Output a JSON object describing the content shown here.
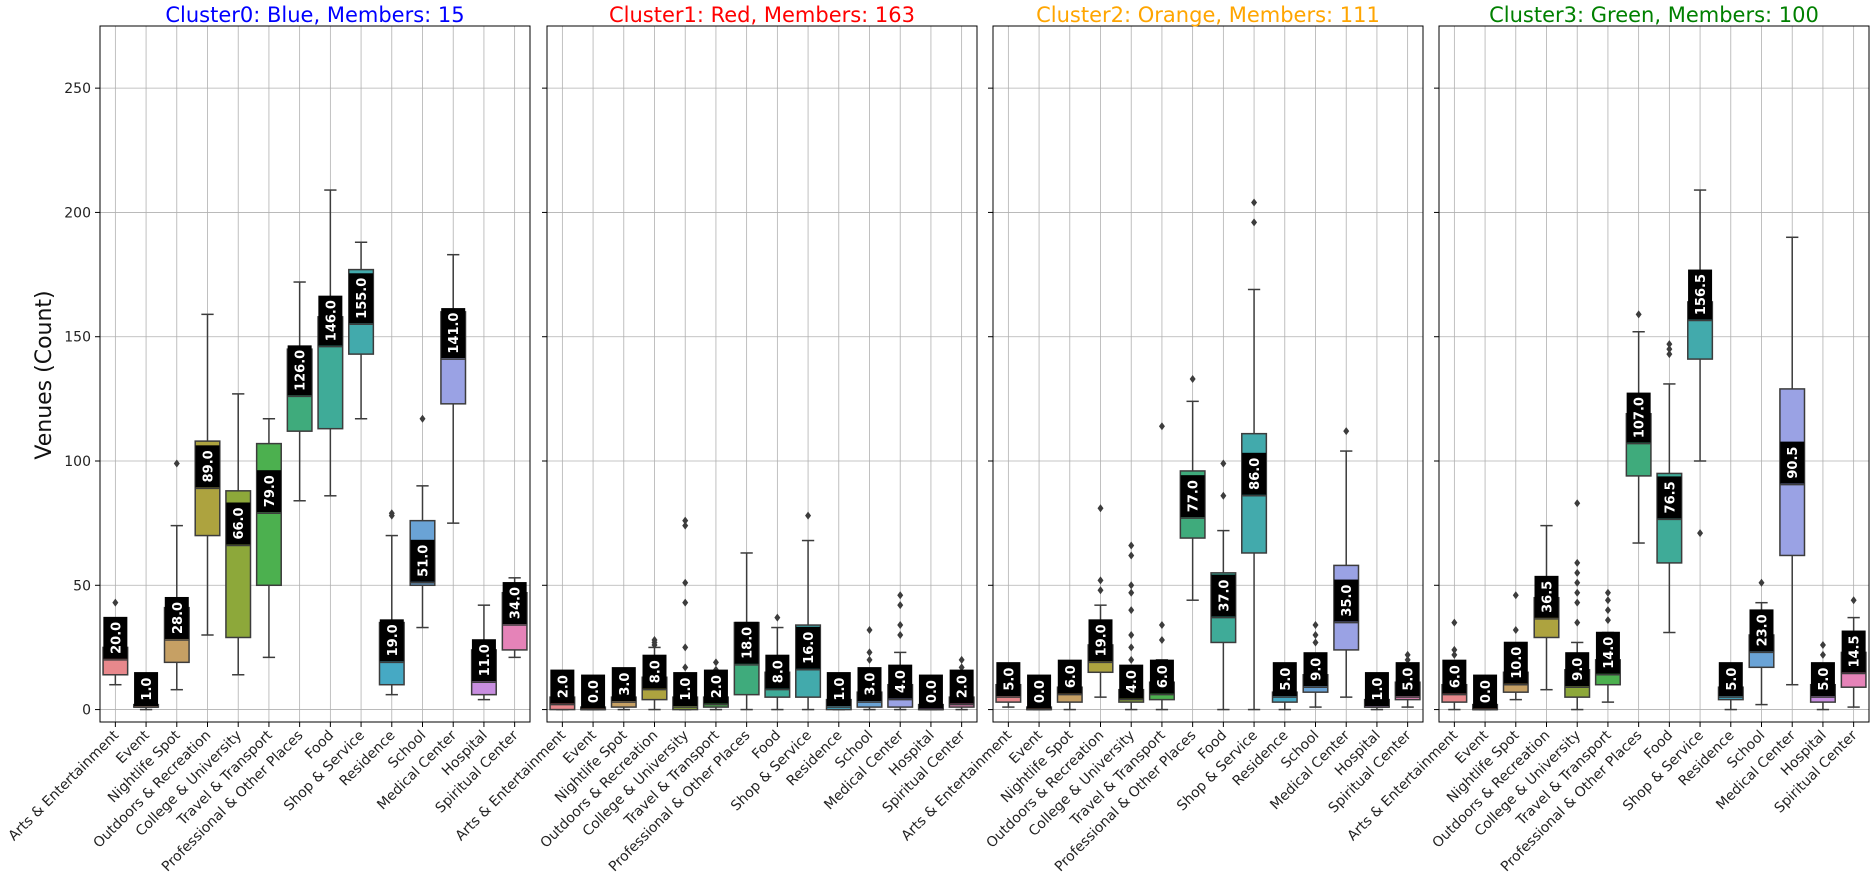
{
  "chart_data": {
    "type": "box",
    "ylabel": "Venues (Count)",
    "ylim": [
      -5,
      275
    ],
    "yticks": [
      0,
      50,
      100,
      150,
      200,
      250
    ],
    "grid": true,
    "categories": [
      "Arts & Entertainment",
      "Event",
      "Nightlife Spot",
      "Outdoors & Recreation",
      "College & University",
      "Travel & Transport",
      "Professional & Other Places",
      "Food",
      "Shop & Service",
      "Residence",
      "School",
      "Medical Center",
      "Hospital",
      "Spiritual Center"
    ],
    "category_colors": [
      "#e8888c",
      "#d89a7c",
      "#c6a064",
      "#ada33f",
      "#8da83a",
      "#4cb04f",
      "#3fab7c",
      "#3fab98",
      "#42aaac",
      "#46a9c4",
      "#6aa3d6",
      "#9aa2e4",
      "#c88ee0",
      "#e583b8"
    ],
    "panels": [
      {
        "title": "Cluster0: Blue, Members: 15",
        "title_color": "#0000ff",
        "boxes": [
          {
            "q1": 14,
            "median": 20,
            "q3": 25,
            "whisker_low": 10,
            "whisker_high": 35,
            "outliers": [
              43
            ]
          },
          {
            "q1": 1,
            "median": 1,
            "q3": 2,
            "whisker_low": 0,
            "whisker_high": 3,
            "outliers": []
          },
          {
            "q1": 19,
            "median": 28,
            "q3": 41,
            "whisker_low": 8,
            "whisker_high": 74,
            "outliers": [
              99
            ]
          },
          {
            "q1": 70,
            "median": 89,
            "q3": 108,
            "whisker_low": 30,
            "whisker_high": 159,
            "outliers": []
          },
          {
            "q1": 29,
            "median": 66,
            "q3": 88,
            "whisker_low": 14,
            "whisker_high": 127,
            "outliers": []
          },
          {
            "q1": 50,
            "median": 79,
            "q3": 107,
            "whisker_low": 21,
            "whisker_high": 117,
            "outliers": []
          },
          {
            "q1": 112,
            "median": 126,
            "q3": 145,
            "whisker_low": 84,
            "whisker_high": 172,
            "outliers": []
          },
          {
            "q1": 113,
            "median": 146,
            "q3": 158,
            "whisker_low": 86,
            "whisker_high": 209,
            "outliers": []
          },
          {
            "q1": 143,
            "median": 155,
            "q3": 177,
            "whisker_low": 117,
            "whisker_high": 188,
            "outliers": []
          },
          {
            "q1": 10,
            "median": 19,
            "q3": 35,
            "whisker_low": 6,
            "whisker_high": 70,
            "outliers": [
              78,
              79
            ]
          },
          {
            "q1": 50,
            "median": 51,
            "q3": 76,
            "whisker_low": 33,
            "whisker_high": 90,
            "outliers": [
              117
            ]
          },
          {
            "q1": 123,
            "median": 141,
            "q3": 160,
            "whisker_low": 75,
            "whisker_high": 183,
            "outliers": []
          },
          {
            "q1": 6,
            "median": 11,
            "q3": 24,
            "whisker_low": 4,
            "whisker_high": 42,
            "outliers": []
          },
          {
            "q1": 24,
            "median": 34,
            "q3": 47,
            "whisker_low": 21,
            "whisker_high": 53,
            "outliers": []
          }
        ],
        "median_labels": [
          "20.0",
          "1.0",
          "28.0",
          "89.0",
          "66.0",
          "79.0",
          "126.0",
          "146.0",
          "155.0",
          "19.0",
          "51.0",
          "141.0",
          "11.0",
          "34.0"
        ]
      },
      {
        "title": "Cluster1: Red, Members: 163",
        "title_color": "#ff0000",
        "boxes": [
          {
            "q1": 0,
            "median": 2,
            "q3": 5,
            "whisker_low": 0,
            "whisker_high": 9,
            "outliers": [
              10,
              12
            ]
          },
          {
            "q1": 0,
            "median": 0,
            "q3": 1,
            "whisker_low": 0,
            "whisker_high": 2,
            "outliers": [
              3
            ]
          },
          {
            "q1": 1,
            "median": 3,
            "q3": 5,
            "whisker_low": 0,
            "whisker_high": 10,
            "outliers": [
              12
            ]
          },
          {
            "q1": 4,
            "median": 8,
            "q3": 13,
            "whisker_low": 0,
            "whisker_high": 25,
            "outliers": [
              26,
              27,
              28
            ]
          },
          {
            "q1": 0,
            "median": 1,
            "q3": 5,
            "whisker_low": 0,
            "whisker_high": 12,
            "outliers": [
              17,
              25,
              43,
              51,
              74,
              76
            ]
          },
          {
            "q1": 1,
            "median": 2,
            "q3": 5,
            "whisker_low": 0,
            "whisker_high": 11,
            "outliers": [
              16,
              19
            ]
          },
          {
            "q1": 6,
            "median": 18,
            "q3": 35,
            "whisker_low": 0,
            "whisker_high": 63,
            "outliers": []
          },
          {
            "q1": 5,
            "median": 8,
            "q3": 15,
            "whisker_low": 0,
            "whisker_high": 33,
            "outliers": [
              37
            ]
          },
          {
            "q1": 5,
            "median": 16,
            "q3": 34,
            "whisker_low": 0,
            "whisker_high": 68,
            "outliers": [
              78
            ]
          },
          {
            "q1": 0,
            "median": 1,
            "q3": 4,
            "whisker_low": 0,
            "whisker_high": 9,
            "outliers": []
          },
          {
            "q1": 1,
            "median": 3,
            "q3": 7,
            "whisker_low": 0,
            "whisker_high": 15,
            "outliers": [
              20,
              23,
              32
            ]
          },
          {
            "q1": 1,
            "median": 4,
            "q3": 10,
            "whisker_low": 0,
            "whisker_high": 23,
            "outliers": [
              30,
              34,
              42,
              46
            ]
          },
          {
            "q1": 0,
            "median": 0,
            "q3": 2,
            "whisker_low": 0,
            "whisker_high": 6,
            "outliers": []
          },
          {
            "q1": 1,
            "median": 2,
            "q3": 5,
            "whisker_low": 0,
            "whisker_high": 13,
            "outliers": [
              17,
              20
            ]
          }
        ],
        "median_labels": [
          "2.0",
          "0.0",
          "3.0",
          "8.0",
          "1.0",
          "2.0",
          "18.0",
          "8.0",
          "16.0",
          "1.0",
          "3.0",
          "4.0",
          "0.0",
          "2.0"
        ]
      },
      {
        "title": "Cluster2: Orange, Members: 111",
        "title_color": "#ffa500",
        "boxes": [
          {
            "q1": 3,
            "median": 5,
            "q3": 10,
            "whisker_low": 1,
            "whisker_high": 14,
            "outliers": []
          },
          {
            "q1": 0,
            "median": 0,
            "q3": 1,
            "whisker_low": 0,
            "whisker_high": 2,
            "outliers": []
          },
          {
            "q1": 3,
            "median": 6,
            "q3": 9,
            "whisker_low": 0,
            "whisker_high": 15,
            "outliers": []
          },
          {
            "q1": 15,
            "median": 19,
            "q3": 26,
            "whisker_low": 5,
            "whisker_high": 42,
            "outliers": [
              48,
              52,
              81
            ]
          },
          {
            "q1": 3,
            "median": 4,
            "q3": 8,
            "whisker_low": 0,
            "whisker_high": 15,
            "outliers": [
              20,
              25,
              30,
              40,
              47,
              50,
              62,
              66
            ]
          },
          {
            "q1": 4,
            "median": 6,
            "q3": 11,
            "whisker_low": 0,
            "whisker_high": 20,
            "outliers": [
              28,
              34,
              114
            ]
          },
          {
            "q1": 69,
            "median": 77,
            "q3": 96,
            "whisker_low": 44,
            "whisker_high": 124,
            "outliers": [
              133
            ]
          },
          {
            "q1": 27,
            "median": 37,
            "q3": 55,
            "whisker_low": 0,
            "whisker_high": 72,
            "outliers": [
              86,
              99
            ]
          },
          {
            "q1": 63,
            "median": 86,
            "q3": 111,
            "whisker_low": 0,
            "whisker_high": 169,
            "outliers": [
              196,
              204
            ]
          },
          {
            "q1": 3,
            "median": 5,
            "q3": 7,
            "whisker_low": 0,
            "whisker_high": 10,
            "outliers": []
          },
          {
            "q1": 7,
            "median": 9,
            "q3": 14,
            "whisker_low": 1,
            "whisker_high": 22,
            "outliers": [
              27,
              30,
              34
            ]
          },
          {
            "q1": 24,
            "median": 35,
            "q3": 58,
            "whisker_low": 5,
            "whisker_high": 104,
            "outliers": [
              112
            ]
          },
          {
            "q1": 1,
            "median": 1,
            "q3": 4,
            "whisker_low": 0,
            "whisker_high": 9,
            "outliers": []
          },
          {
            "q1": 4,
            "median": 5,
            "q3": 11,
            "whisker_low": 1,
            "whisker_high": 17,
            "outliers": [
              20,
              22
            ]
          }
        ],
        "median_labels": [
          "5.0",
          "0.0",
          "6.0",
          "19.0",
          "4.0",
          "6.0",
          "77.0",
          "37.0",
          "86.0",
          "5.0",
          "9.0",
          "35.0",
          "1.0",
          "5.0"
        ]
      },
      {
        "title": "Cluster3: Green, Members: 100",
        "title_color": "#008000",
        "boxes": [
          {
            "q1": 3,
            "median": 6,
            "q3": 10,
            "whisker_low": 0,
            "whisker_high": 16,
            "outliers": [
              22,
              24,
              35
            ]
          },
          {
            "q1": 0,
            "median": 0,
            "q3": 2,
            "whisker_low": 0,
            "whisker_high": 4,
            "outliers": [
              6
            ]
          },
          {
            "q1": 7,
            "median": 10,
            "q3": 15,
            "whisker_low": 4,
            "whisker_high": 22,
            "outliers": [
              32,
              46
            ]
          },
          {
            "q1": 29,
            "median": 36.5,
            "q3": 45,
            "whisker_low": 8,
            "whisker_high": 74,
            "outliers": []
          },
          {
            "q1": 5,
            "median": 9,
            "q3": 16,
            "whisker_low": 0,
            "whisker_high": 27,
            "outliers": [
              35,
              43,
              47,
              51,
              55,
              59,
              83
            ]
          },
          {
            "q1": 10,
            "median": 14,
            "q3": 20,
            "whisker_low": 3,
            "whisker_high": 31,
            "outliers": [
              36,
              40,
              44,
              47
            ]
          },
          {
            "q1": 94,
            "median": 107,
            "q3": 119,
            "whisker_low": 67,
            "whisker_high": 152,
            "outliers": [
              159
            ]
          },
          {
            "q1": 59,
            "median": 76.5,
            "q3": 95,
            "whisker_low": 31,
            "whisker_high": 131,
            "outliers": [
              143,
              145,
              147
            ]
          },
          {
            "q1": 141,
            "median": 156.5,
            "q3": 164,
            "whisker_low": 100,
            "whisker_high": 209,
            "outliers": [
              71
            ]
          },
          {
            "q1": 4,
            "median": 5,
            "q3": 9,
            "whisker_low": 0,
            "whisker_high": 14,
            "outliers": []
          },
          {
            "q1": 17,
            "median": 23,
            "q3": 30,
            "whisker_low": 2,
            "whisker_high": 43,
            "outliers": [
              51
            ]
          },
          {
            "q1": 62,
            "median": 90.5,
            "q3": 129,
            "whisker_low": 10,
            "whisker_high": 190,
            "outliers": []
          },
          {
            "q1": 3,
            "median": 5,
            "q3": 10,
            "whisker_low": 0,
            "whisker_high": 17,
            "outliers": [
              22,
              26
            ]
          },
          {
            "q1": 9,
            "median": 14.5,
            "q3": 23,
            "whisker_low": 1,
            "whisker_high": 37,
            "outliers": [
              44
            ]
          }
        ],
        "median_labels": [
          "6.0",
          "0.0",
          "10.0",
          "36.5",
          "9.0",
          "14.0",
          "107.0",
          "76.5",
          "156.5",
          "5.0",
          "23.0",
          "90.5",
          "5.0",
          "14.5"
        ]
      }
    ]
  }
}
